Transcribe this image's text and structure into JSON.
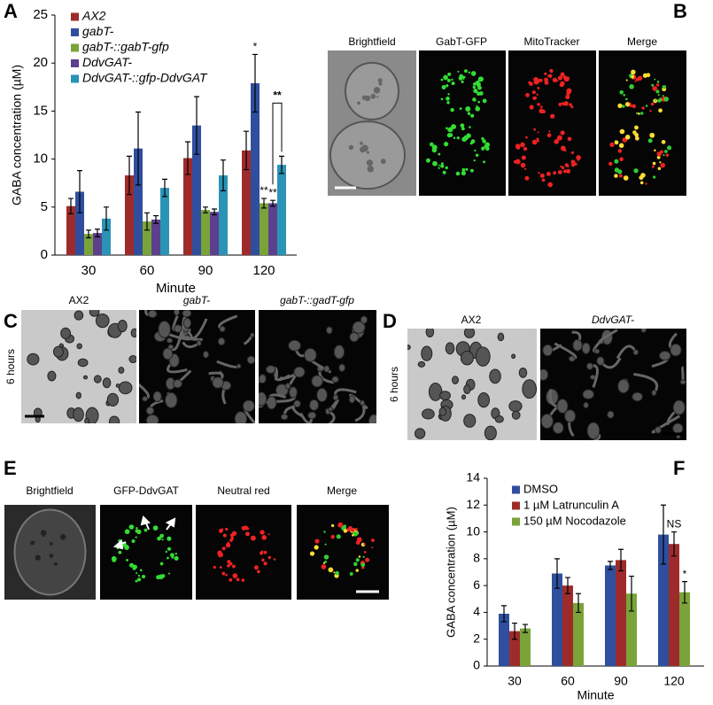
{
  "panel_labels": [
    "A",
    "B",
    "C",
    "D",
    "E",
    "F"
  ],
  "micrographs": {
    "B": {
      "captions": [
        "Brightfield",
        "GabT-GFP",
        "MitoTracker",
        "Merge"
      ]
    },
    "C": {
      "captions": [
        "AX2",
        "gabT-",
        "gabT-::gadT-gfp"
      ],
      "side_label": "6 hours"
    },
    "D": {
      "captions": [
        "AX2",
        "DdvGAT-"
      ],
      "side_label": "6 hours"
    },
    "E": {
      "captions": [
        "Brightfield",
        "GFP-DdvGAT",
        "Neutral red",
        "Merge"
      ]
    }
  },
  "chart_data": [
    {
      "type": "bar",
      "ylabel": "GABA concentration (µM)",
      "xlabel": "Minute",
      "categories": [
        "30",
        "60",
        "90",
        "120"
      ],
      "series": [
        {
          "name": "AX2",
          "color": "#9e2b2b",
          "values": [
            5.1,
            8.3,
            10.1,
            10.9
          ],
          "errors": [
            0.8,
            2.0,
            1.7,
            2.0
          ]
        },
        {
          "name": "gabT-",
          "color": "#2f4f9e",
          "values": [
            6.6,
            11.1,
            13.5,
            17.9
          ],
          "errors": [
            2.2,
            3.8,
            3.0,
            3.0
          ]
        },
        {
          "name": "gabT-::gabT-gfp",
          "color": "#7aa33a",
          "values": [
            2.2,
            3.5,
            4.7,
            5.4
          ],
          "errors": [
            0.4,
            0.9,
            0.3,
            0.5
          ]
        },
        {
          "name": "DdvGAT-",
          "color": "#5c3f8d",
          "values": [
            2.3,
            3.7,
            4.5,
            5.4
          ],
          "errors": [
            0.4,
            0.4,
            0.3,
            0.3
          ]
        },
        {
          "name": "DdvGAT-::gfp-DdvGAT",
          "color": "#2a93b6",
          "values": [
            3.8,
            7.0,
            8.3,
            9.4
          ],
          "errors": [
            1.2,
            0.9,
            1.6,
            0.9
          ]
        }
      ],
      "ylim": [
        0,
        25
      ],
      "yticks": [
        0,
        5,
        10,
        15,
        20,
        25
      ],
      "legend": "upper left",
      "annotations": [
        "*",
        "**",
        "**",
        "**"
      ]
    },
    {
      "type": "bar",
      "ylabel": "GABA concentration (µM)",
      "xlabel": "Minute",
      "categories": [
        "30",
        "60",
        "90",
        "120"
      ],
      "series": [
        {
          "name": "DMSO",
          "color": "#2f4f9e",
          "values": [
            3.9,
            6.9,
            7.5,
            9.8
          ],
          "errors": [
            0.6,
            1.1,
            0.3,
            2.2
          ]
        },
        {
          "name": "1 µM Latrunculin A",
          "color": "#9e2b2b",
          "values": [
            2.6,
            6.0,
            7.9,
            9.1
          ],
          "errors": [
            0.6,
            0.6,
            0.8,
            0.9
          ]
        },
        {
          "name": "150 µM Nocodazole",
          "color": "#7aa33a",
          "values": [
            2.8,
            4.7,
            5.4,
            5.5
          ],
          "errors": [
            0.3,
            0.7,
            1.3,
            0.8
          ]
        }
      ],
      "ylim": [
        0,
        14
      ],
      "yticks": [
        0,
        2,
        4,
        6,
        8,
        10,
        12,
        14
      ],
      "legend": "upper left",
      "annotations": [
        "NS",
        "*"
      ]
    }
  ]
}
